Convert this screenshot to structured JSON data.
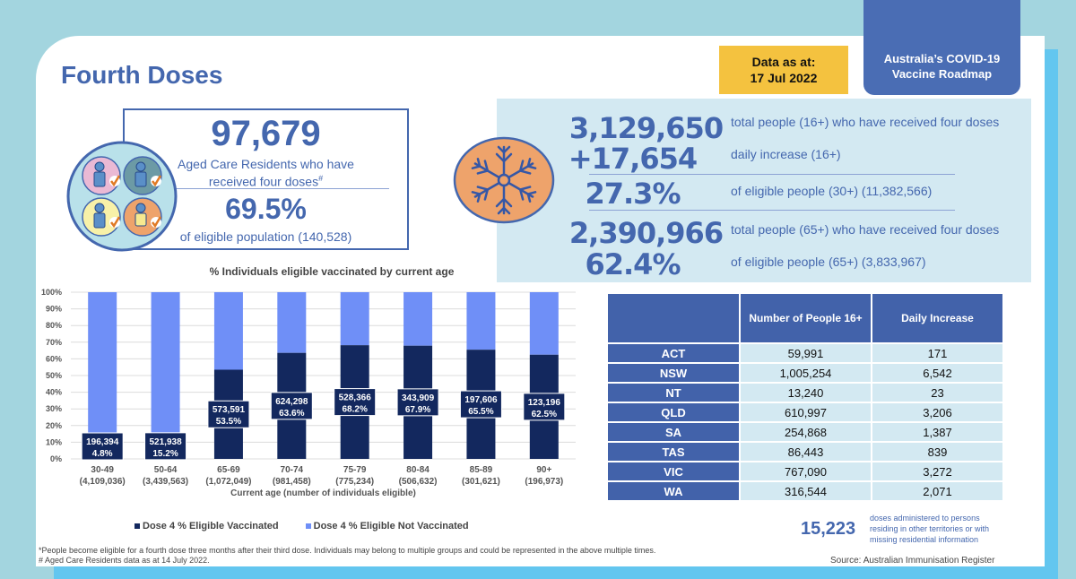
{
  "header": {
    "title": "Fourth Doses",
    "date_label": "Data as at:",
    "date_value": "17 Jul 2022",
    "roadmap_line1": "Australia’s COVID-19",
    "roadmap_line2": "Vaccine Roadmap"
  },
  "aged_care": {
    "icon": "aged-care-people-icon",
    "count": "97,679",
    "label_line1": "Aged Care Residents who have",
    "label_line2": "received four doses",
    "label_mark": "#",
    "percent": "69.5%",
    "population_label": "of eligible population (140,528)"
  },
  "stats": {
    "icon": "snowflake-icon",
    "items": [
      {
        "value": "3,129,650",
        "label": "total people (16+) who have received four doses"
      },
      {
        "value": "+17,654",
        "label": "daily increase (16+)"
      },
      {
        "value": "27.3%",
        "label": "of eligible people (30+) (11,382,566)"
      },
      {
        "value": "2,390,966",
        "label": "total people (65+) who have received four doses"
      },
      {
        "value": "62.4%",
        "label": "of eligible people (65+) (3,833,967)"
      }
    ]
  },
  "chart_data": {
    "type": "bar",
    "stacked": true,
    "title": "% Individuals eligible vaccinated by current age",
    "xlabel": "Current age (number of individuals eligible)",
    "ylabel": "",
    "ylim": [
      0,
      100
    ],
    "yticks": [
      "0%",
      "10%",
      "20%",
      "30%",
      "40%",
      "50%",
      "60%",
      "70%",
      "80%",
      "90%",
      "100%"
    ],
    "grid": true,
    "legend_position": "bottom",
    "categories": [
      "30-49",
      "50-64",
      "65-69",
      "70-74",
      "75-79",
      "80-84",
      "85-89",
      "90+"
    ],
    "category_sublabels": [
      "(4,109,036)",
      "(3,439,563)",
      "(1,072,049)",
      "(981,458)",
      "(775,234)",
      "(506,632)",
      "(301,621)",
      "(196,973)"
    ],
    "series": [
      {
        "name": "Dose 4 % Eligible Vaccinated",
        "color": "#13285e",
        "values": [
          4.8,
          15.2,
          53.5,
          63.6,
          68.2,
          67.9,
          65.5,
          62.5
        ]
      },
      {
        "name": "Dose 4 % Eligible Not Vaccinated",
        "color": "#6f8ff7",
        "values": [
          95.2,
          84.8,
          46.5,
          36.4,
          31.8,
          32.1,
          34.5,
          37.5
        ]
      }
    ],
    "data_labels": [
      {
        "count": "196,394",
        "pct": "4.8%"
      },
      {
        "count": "521,938",
        "pct": "15.2%"
      },
      {
        "count": "573,591",
        "pct": "53.5%"
      },
      {
        "count": "624,298",
        "pct": "63.6%"
      },
      {
        "count": "528,366",
        "pct": "68.2%"
      },
      {
        "count": "343,909",
        "pct": "67.9%"
      },
      {
        "count": "197,606",
        "pct": "65.5%"
      },
      {
        "count": "123,196",
        "pct": "62.5%"
      }
    ]
  },
  "table": {
    "headers": [
      "",
      "Number of People 16+",
      "Daily Increase"
    ],
    "rows": [
      {
        "state": "ACT",
        "people": "59,991",
        "daily": "171"
      },
      {
        "state": "NSW",
        "people": "1,005,254",
        "daily": "6,542"
      },
      {
        "state": "NT",
        "people": "13,240",
        "daily": "23"
      },
      {
        "state": "QLD",
        "people": "610,997",
        "daily": "3,206"
      },
      {
        "state": "SA",
        "people": "254,868",
        "daily": "1,387"
      },
      {
        "state": "TAS",
        "people": "86,443",
        "daily": "839"
      },
      {
        "state": "VIC",
        "people": "767,090",
        "daily": "3,272"
      },
      {
        "state": "WA",
        "people": "316,544",
        "daily": "2,071"
      }
    ]
  },
  "other": {
    "value": "15,223",
    "label": "doses administered to persons residing in other territories or with missing residential information"
  },
  "footnotes": {
    "line1": "*People become eligible for a fourth dose three months after their third dose. Individuals may belong to multiple groups and could be represented in the above multiple times.",
    "line2": "# Aged Care Residents data as at 14 July 2022.",
    "source": "Source: Australian Immunisation Register"
  },
  "colors": {
    "brand_blue": "#4467ae",
    "date_yellow": "#f4c23f",
    "vaccinated": "#13285e",
    "not_vaccinated": "#6f8ff7",
    "panel_bg": "#d3e9f2"
  }
}
